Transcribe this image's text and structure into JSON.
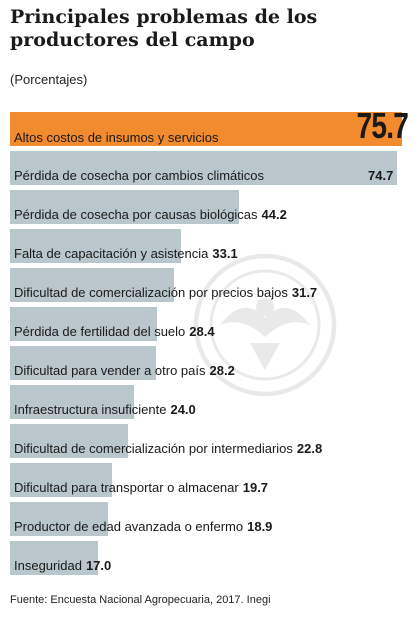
{
  "title": "Principales problemas de los productores del campo",
  "subtitle": "(Porcentajes)",
  "source": "Fuente: Encuesta Nacional Agropecuaria, 2017. Inegi",
  "colors": {
    "highlight": "#f28a2e",
    "bar": "#b9c6cc"
  },
  "chart_data": {
    "type": "bar",
    "orientation": "horizontal",
    "categories": [
      "Altos costos de insumos y servicios",
      "Pérdida de cosecha por cambios climáticos",
      "Pérdida de cosecha por causas biológicas",
      "Falta de capacitación y asistencia",
      "Dificultad de comercialización por precios bajos",
      "Pérdida de fertilidad del suelo",
      "Dificultad para vender a otro país",
      "Infraestructura insuficiente",
      "Dificultad de comercialización por intermediarios",
      "Dificultad para transportar o almacenar",
      "Productor de edad avanzada o enfermo",
      "Inseguridad"
    ],
    "values": [
      75.7,
      74.7,
      44.2,
      33.1,
      31.7,
      28.4,
      28.2,
      24.0,
      22.8,
      19.7,
      18.9,
      17.0
    ],
    "value_labels": [
      "75.7",
      "74.7",
      "44.2",
      "33.1",
      "31.7",
      "28.4",
      "28.2",
      "24.0",
      "22.8",
      "19.7",
      "18.9",
      "17.0"
    ],
    "highlight_index": 0,
    "xlim": [
      0,
      75.7
    ],
    "grid": false,
    "legend": "none"
  }
}
